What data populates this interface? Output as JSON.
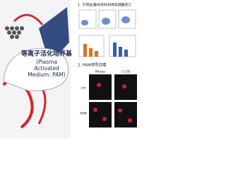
{
  "left_panel": {
    "title": "等离子活化培养基",
    "subtitle_1": "(Plasma",
    "subtitle_2": "Activated",
    "subtitle_3": "Medium: PAM)"
  },
  "right_panel": {
    "section_1": "1. 不同处理时间PAM诱导细胞死亡",
    "section_2": "2. PAM诱导自噬",
    "column_labels": [
      "Merge",
      "LC3B"
    ],
    "row_labels": [
      "ctrl",
      "PAM"
    ]
  }
}
